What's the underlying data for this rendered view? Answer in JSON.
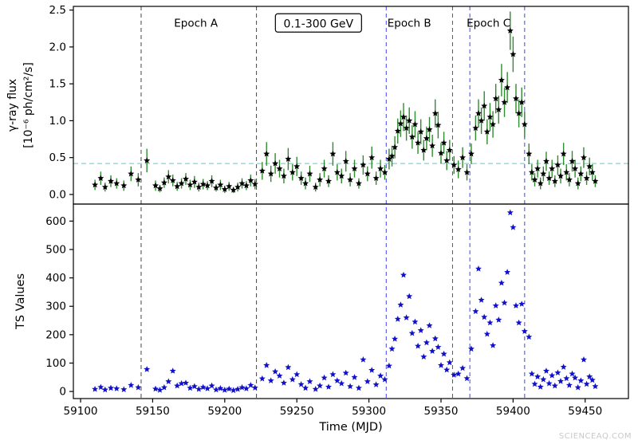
{
  "watermark": "SCIENCEAQ.COM",
  "chart_data": {
    "type": "scatter",
    "title": "",
    "xlabel": "Time (MJD)",
    "xlim": [
      59095,
      59480
    ],
    "xticks": [
      59100,
      59150,
      59200,
      59250,
      59300,
      59350,
      59400,
      59450
    ],
    "xtick_labels": [
      "59100",
      "59150",
      "59200",
      "59250",
      "59300",
      "59350",
      "59400",
      "59450"
    ],
    "grid": false,
    "legend": "none",
    "panels": [
      {
        "name": "flux",
        "ylabel_line1": "γ-ray flux",
        "ylabel_line2": "[10⁻⁶ ph/cm²/s]",
        "ylim": [
          -0.13,
          2.55
        ],
        "yticks": [
          0.0,
          0.5,
          1.0,
          1.5,
          2.0,
          2.5
        ],
        "ytick_labels": [
          "0.0",
          "0.5",
          "1.0",
          "1.5",
          "2.0",
          "2.5"
        ],
        "marker": "star",
        "marker_color": "#000000",
        "errorbar_color": "#2e8b2e",
        "hline": {
          "y": 0.42,
          "color": "#55cccc",
          "style": "dashed"
        },
        "annotations": [
          {
            "label": "Epoch A",
            "x": 59180,
            "y": 2.32
          },
          {
            "label": "Epoch B",
            "x": 59328,
            "y": 2.32
          },
          {
            "label": "Epoch C",
            "x": 59383,
            "y": 2.32
          }
        ],
        "box_label": {
          "text": "0.1-300 GeV",
          "x": 59265,
          "y": 2.32
        }
      },
      {
        "name": "ts",
        "ylabel_line1": "TS Values",
        "ylabel_line2": "",
        "ylim": [
          -25,
          660
        ],
        "yticks": [
          0,
          100,
          200,
          300,
          400,
          500,
          600
        ],
        "ytick_labels": [
          "0",
          "100",
          "200",
          "300",
          "400",
          "500",
          "600"
        ],
        "marker": "star",
        "marker_color": "#1111cc",
        "errorbar_color": "none"
      }
    ],
    "vlines": [
      {
        "x": 59142,
        "color": "#444444",
        "style": "dashed"
      },
      {
        "x": 59222,
        "color": "#444444",
        "style": "dashed"
      },
      {
        "x": 59312,
        "color": "#4444ee",
        "style": "dashed"
      },
      {
        "x": 59358,
        "color": "#4444ee",
        "style": "dashed"
      },
      {
        "x": 59370,
        "color": "#4444ee",
        "style": "dashed"
      },
      {
        "x": 59408,
        "color": "#4444ee",
        "style": "dashed"
      }
    ],
    "points_format": [
      "mjd",
      "flux_1e-6_ph_cm2_s",
      "flux_err",
      "ts_value"
    ],
    "points": [
      [
        59110,
        0.13,
        0.07,
        8
      ],
      [
        59114,
        0.22,
        0.09,
        15
      ],
      [
        59117,
        0.1,
        0.06,
        6
      ],
      [
        59121,
        0.18,
        0.08,
        12
      ],
      [
        59125,
        0.15,
        0.07,
        10
      ],
      [
        59130,
        0.12,
        0.07,
        7
      ],
      [
        59135,
        0.28,
        0.1,
        22
      ],
      [
        59140,
        0.2,
        0.09,
        14
      ],
      [
        59146,
        0.46,
        0.16,
        78
      ],
      [
        59152,
        0.12,
        0.07,
        9
      ],
      [
        59155,
        0.08,
        0.05,
        5
      ],
      [
        59158,
        0.16,
        0.07,
        14
      ],
      [
        59161,
        0.24,
        0.09,
        35
      ],
      [
        59164,
        0.19,
        0.08,
        72
      ],
      [
        59167,
        0.11,
        0.06,
        20
      ],
      [
        59170,
        0.15,
        0.07,
        28
      ],
      [
        59173,
        0.21,
        0.08,
        30
      ],
      [
        59176,
        0.13,
        0.07,
        12
      ],
      [
        59179,
        0.17,
        0.08,
        18
      ],
      [
        59182,
        0.1,
        0.06,
        8
      ],
      [
        59185,
        0.14,
        0.07,
        15
      ],
      [
        59188,
        0.12,
        0.06,
        10
      ],
      [
        59191,
        0.18,
        0.08,
        20
      ],
      [
        59194,
        0.09,
        0.05,
        6
      ],
      [
        59197,
        0.13,
        0.07,
        11
      ],
      [
        59200,
        0.07,
        0.05,
        5
      ],
      [
        59203,
        0.11,
        0.06,
        9
      ],
      [
        59206,
        0.06,
        0.04,
        4
      ],
      [
        59209,
        0.1,
        0.06,
        8
      ],
      [
        59212,
        0.15,
        0.07,
        14
      ],
      [
        59215,
        0.12,
        0.06,
        10
      ],
      [
        59218,
        0.19,
        0.08,
        22
      ],
      [
        59221,
        0.14,
        0.07,
        13
      ],
      [
        59226,
        0.32,
        0.12,
        45
      ],
      [
        59229,
        0.55,
        0.16,
        92
      ],
      [
        59232,
        0.28,
        0.11,
        38
      ],
      [
        59235,
        0.42,
        0.14,
        70
      ],
      [
        59238,
        0.35,
        0.12,
        55
      ],
      [
        59241,
        0.25,
        0.1,
        30
      ],
      [
        59244,
        0.48,
        0.15,
        85
      ],
      [
        59247,
        0.3,
        0.11,
        42
      ],
      [
        59250,
        0.38,
        0.13,
        60
      ],
      [
        59253,
        0.22,
        0.09,
        25
      ],
      [
        59256,
        0.15,
        0.08,
        12
      ],
      [
        59259,
        0.28,
        0.11,
        35
      ],
      [
        59263,
        0.1,
        0.06,
        8
      ],
      [
        59266,
        0.2,
        0.09,
        20
      ],
      [
        59269,
        0.35,
        0.12,
        48
      ],
      [
        59272,
        0.18,
        0.08,
        16
      ],
      [
        59275,
        0.55,
        0.16,
        60
      ],
      [
        59278,
        0.3,
        0.11,
        38
      ],
      [
        59281,
        0.25,
        0.1,
        28
      ],
      [
        59284,
        0.45,
        0.14,
        65
      ],
      [
        59287,
        0.2,
        0.09,
        18
      ],
      [
        59290,
        0.35,
        0.12,
        50
      ],
      [
        59293,
        0.15,
        0.07,
        12
      ],
      [
        59296,
        0.4,
        0.13,
        112
      ],
      [
        59299,
        0.28,
        0.1,
        35
      ],
      [
        59302,
        0.5,
        0.15,
        75
      ],
      [
        59305,
        0.22,
        0.09,
        24
      ],
      [
        59308,
        0.35,
        0.12,
        55
      ],
      [
        59311,
        0.3,
        0.1,
        42
      ],
      [
        59314,
        0.48,
        0.14,
        90
      ],
      [
        59316,
        0.52,
        0.14,
        150
      ],
      [
        59318,
        0.64,
        0.15,
        185
      ],
      [
        59320,
        0.86,
        0.17,
        255
      ],
      [
        59322,
        0.96,
        0.18,
        305
      ],
      [
        59324,
        1.05,
        0.19,
        410
      ],
      [
        59326,
        0.9,
        0.17,
        260
      ],
      [
        59328,
        1.0,
        0.18,
        335
      ],
      [
        59330,
        0.78,
        0.16,
        205
      ],
      [
        59332,
        0.95,
        0.18,
        245
      ],
      [
        59334,
        0.7,
        0.15,
        160
      ],
      [
        59336,
        0.85,
        0.17,
        215
      ],
      [
        59338,
        0.6,
        0.14,
        122
      ],
      [
        59340,
        0.76,
        0.16,
        172
      ],
      [
        59342,
        0.88,
        0.17,
        232
      ],
      [
        59344,
        0.66,
        0.15,
        142
      ],
      [
        59346,
        1.1,
        0.19,
        186
      ],
      [
        59348,
        0.94,
        0.18,
        156
      ],
      [
        59350,
        0.56,
        0.14,
        92
      ],
      [
        59352,
        0.7,
        0.15,
        132
      ],
      [
        59354,
        0.46,
        0.13,
        76
      ],
      [
        59356,
        0.6,
        0.14,
        102
      ],
      [
        59359,
        0.4,
        0.12,
        58
      ],
      [
        59362,
        0.34,
        0.12,
        62
      ],
      [
        59365,
        0.5,
        0.14,
        82
      ],
      [
        59368,
        0.3,
        0.11,
        46
      ],
      [
        59371,
        0.55,
        0.14,
        150
      ],
      [
        59374,
        0.9,
        0.17,
        282
      ],
      [
        59376,
        1.1,
        0.19,
        432
      ],
      [
        59378,
        1.0,
        0.18,
        322
      ],
      [
        59380,
        1.2,
        0.2,
        262
      ],
      [
        59382,
        0.85,
        0.17,
        202
      ],
      [
        59384,
        1.05,
        0.19,
        242
      ],
      [
        59386,
        0.95,
        0.18,
        162
      ],
      [
        59388,
        1.3,
        0.2,
        302
      ],
      [
        59390,
        1.15,
        0.19,
        252
      ],
      [
        59392,
        1.55,
        0.22,
        382
      ],
      [
        59394,
        1.25,
        0.2,
        312
      ],
      [
        59396,
        1.45,
        0.21,
        420
      ],
      [
        59398,
        2.22,
        0.26,
        630
      ],
      [
        59400,
        1.9,
        0.24,
        578
      ],
      [
        59402,
        1.3,
        0.2,
        302
      ],
      [
        59404,
        1.1,
        0.19,
        242
      ],
      [
        59406,
        1.25,
        0.2,
        308
      ],
      [
        59408,
        0.95,
        0.18,
        212
      ],
      [
        59411,
        0.55,
        0.14,
        192
      ],
      [
        59413,
        0.3,
        0.11,
        62
      ],
      [
        59415,
        0.2,
        0.09,
        26
      ],
      [
        59417,
        0.35,
        0.12,
        52
      ],
      [
        59419,
        0.15,
        0.08,
        16
      ],
      [
        59421,
        0.28,
        0.1,
        42
      ],
      [
        59423,
        0.45,
        0.13,
        72
      ],
      [
        59425,
        0.22,
        0.09,
        28
      ],
      [
        59427,
        0.35,
        0.12,
        56
      ],
      [
        59429,
        0.18,
        0.08,
        20
      ],
      [
        59431,
        0.4,
        0.13,
        66
      ],
      [
        59433,
        0.25,
        0.1,
        36
      ],
      [
        59435,
        0.55,
        0.15,
        86
      ],
      [
        59437,
        0.3,
        0.11,
        46
      ],
      [
        59439,
        0.2,
        0.09,
        22
      ],
      [
        59441,
        0.45,
        0.14,
        62
      ],
      [
        59443,
        0.35,
        0.12,
        48
      ],
      [
        59445,
        0.15,
        0.08,
        14
      ],
      [
        59447,
        0.28,
        0.1,
        38
      ],
      [
        59449,
        0.5,
        0.14,
        112
      ],
      [
        59451,
        0.22,
        0.09,
        26
      ],
      [
        59453,
        0.38,
        0.12,
        52
      ],
      [
        59455,
        0.3,
        0.11,
        40
      ],
      [
        59457,
        0.18,
        0.08,
        18
      ]
    ]
  }
}
